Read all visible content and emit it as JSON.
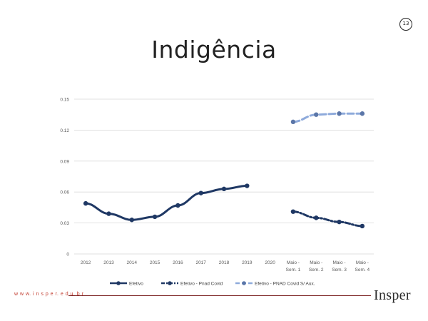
{
  "page": {
    "number": "13",
    "title": "Indigência",
    "footer_url": "w w w. i n s p e r. e d u. b r",
    "brand": "Insper"
  },
  "chart_data": {
    "type": "line",
    "title": "Indigência",
    "xlabel": "",
    "ylabel": "",
    "categories": [
      "2012",
      "2013",
      "2014",
      "2015",
      "2016",
      "2017",
      "2018",
      "2019",
      "2020",
      "Maio - Sem. 1",
      "Maio - Sem. 2",
      "Maio - Sem. 3",
      "Maio - Sem. 4"
    ],
    "category_lines": [
      [
        "2012"
      ],
      [
        "2013"
      ],
      [
        "2014"
      ],
      [
        "2015"
      ],
      [
        "2016"
      ],
      [
        "2017"
      ],
      [
        "2018"
      ],
      [
        "2019"
      ],
      [
        "2020"
      ],
      [
        "Maio -",
        "Sem. 1"
      ],
      [
        "Maio -",
        "Sem. 2"
      ],
      [
        "Maio -",
        "Sem. 3"
      ],
      [
        "Maio -",
        "Sem. 4"
      ]
    ],
    "yticks": [
      "0",
      "0.03",
      "0.06",
      "0.09",
      "0.12",
      "0.15"
    ],
    "ylim": [
      0,
      0.15
    ],
    "grid": true,
    "legend_position": "bottom",
    "series": [
      {
        "name": "Efetivo",
        "color": "#1f3864",
        "dash": "solid",
        "values": [
          0.049,
          0.039,
          0.033,
          0.036,
          0.047,
          0.059,
          0.063,
          0.066,
          null,
          null,
          null,
          null,
          null
        ]
      },
      {
        "name": "Efetivo - Pnad Covid",
        "color": "#1f3864",
        "dash": "dashdot",
        "values": [
          null,
          null,
          null,
          null,
          null,
          null,
          null,
          null,
          null,
          0.041,
          0.035,
          0.031,
          0.027
        ]
      },
      {
        "name": "Efetivo - PNAD Covid S/ Aux.",
        "color": "#8eaadb",
        "dash": "dashed",
        "values": [
          null,
          null,
          null,
          null,
          null,
          null,
          null,
          null,
          null,
          0.128,
          0.135,
          0.136,
          0.136
        ]
      }
    ]
  }
}
